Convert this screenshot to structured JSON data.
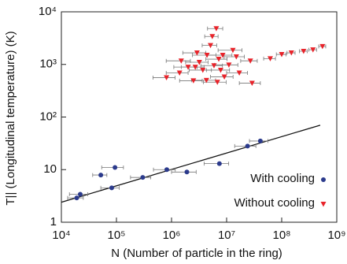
{
  "chart_data": {
    "type": "scatter",
    "x_label": "N (Number of particle in the ring)",
    "y_label": "T|| (Longitudinal temperature) (K)",
    "xlog": true,
    "ylog": true,
    "xlim": [
      10000,
      1000000000
    ],
    "ylim": [
      1,
      10000
    ],
    "xticks": [
      {
        "value": 10000,
        "label": "10⁴"
      },
      {
        "value": 100000,
        "label": "10⁵"
      },
      {
        "value": 1000000,
        "label": "10⁶"
      },
      {
        "value": 10000000,
        "label": "10⁷"
      },
      {
        "value": 100000000,
        "label": "10⁸"
      },
      {
        "value": 1000000000,
        "label": "10⁹"
      }
    ],
    "yticks": [
      1,
      10,
      {
        "value": 100,
        "label": "10²"
      },
      {
        "value": 1000,
        "label": "10³"
      },
      {
        "value": 10000,
        "label": "10⁴"
      }
    ],
    "legend": "lower right",
    "series": [
      {
        "name": "With cooling",
        "color": "#2b3a8c",
        "marker": "circle",
        "x": [
          19000,
          22000,
          52000,
          94000,
          82000,
          300000,
          820000,
          1900000,
          7400000,
          24000000,
          41000000
        ],
        "values": [
          2.9,
          3.4,
          7.9,
          11,
          4.5,
          7.1,
          10,
          9,
          13,
          28,
          35
        ],
        "xerr": [
          6000,
          8000,
          15000,
          40000,
          30000,
          120000,
          350000,
          900000,
          3500000,
          10000000,
          15000000
        ]
      },
      {
        "name": "Without cooling",
        "color": "#e8232a",
        "marker": "triangle",
        "x": [
          810000,
          1400000,
          2000000,
          3200000,
          4400000,
          5900000,
          7200000,
          11000000,
          15000000,
          5100000,
          5500000,
          6500000,
          2500000,
          4300000,
          9100000,
          17000000,
          1500000,
          2900000,
          13000000,
          27000000,
          2700000,
          7800000,
          3700000,
          6800000,
          62000000,
          100000000,
          150000000,
          250000000,
          370000000,
          550000000,
          29000000,
          8500000
        ],
        "values": [
          560,
          690,
          890,
          1100,
          1500,
          950,
          1260,
          980,
          1400,
          2300,
          3400,
          4800,
          490,
          500,
          580,
          690,
          1170,
          1660,
          1860,
          1170,
          890,
          780,
          780,
          460,
          1290,
          1550,
          1660,
          1780,
          1900,
          2200,
          440,
          1500
        ],
        "xerr": [
          350000,
          600000,
          900000,
          1400000,
          2000000,
          2500000,
          3000000,
          5000000,
          6000000,
          1500000,
          1500000,
          2000000,
          1100000,
          2000000,
          4000000,
          7000000,
          700000,
          1300000,
          6000000,
          9000000,
          1200000,
          3500000,
          1600000,
          3000000,
          15000000,
          20000000,
          25000000,
          40000000,
          60000000,
          80000000,
          12000000,
          4000000
        ]
      }
    ],
    "fit": {
      "color": "#111111",
      "x": [
        10000,
        500000000
      ],
      "values": [
        2.4,
        70
      ]
    }
  }
}
